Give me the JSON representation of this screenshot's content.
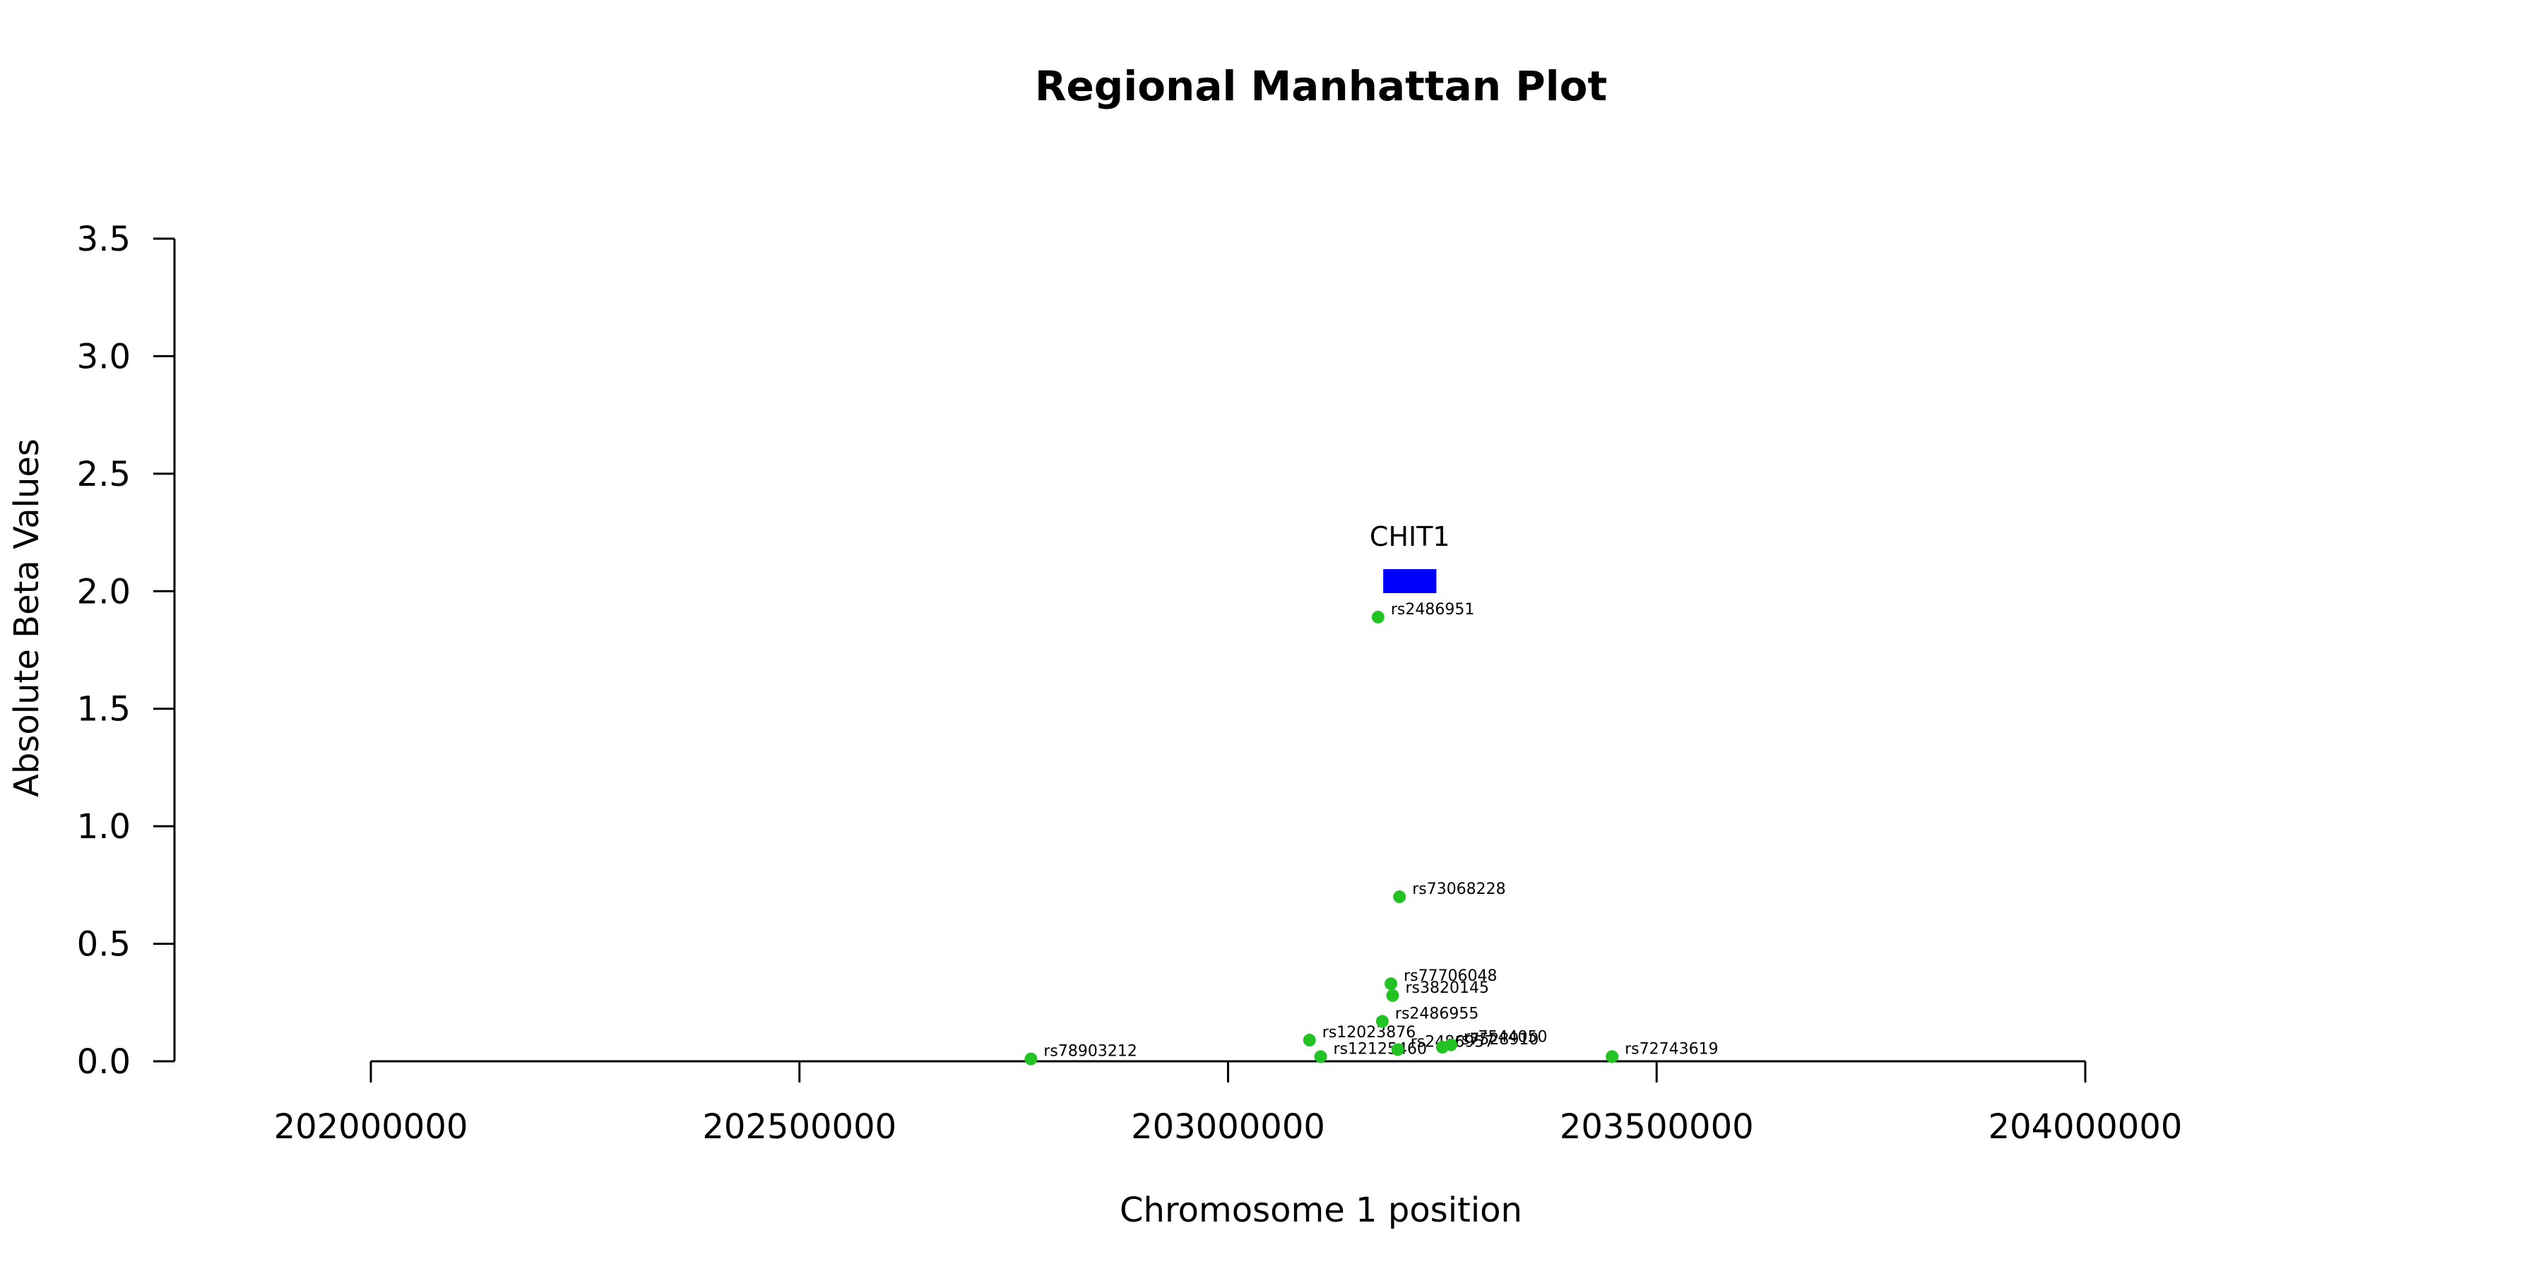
{
  "chart_data": {
    "type": "scatter",
    "title": "Regional Manhattan Plot",
    "xlabel": "Chromosome 1 position",
    "ylabel": "Absolute Beta Values",
    "xlim": [
      202000000,
      204000000
    ],
    "ylim": [
      0,
      3.5
    ],
    "x_ticks": [
      "202000000",
      "202500000",
      "203000000",
      "203500000",
      "204000000"
    ],
    "y_ticks": [
      "0.0",
      "0.5",
      "1.0",
      "1.5",
      "2.0",
      "2.5",
      "3.0",
      "3.5"
    ],
    "point_color": "#22c322",
    "points": [
      {
        "label": "rs78903212",
        "x": 202770000,
        "y": 0.01
      },
      {
        "label": "rs12023876",
        "x": 203095000,
        "y": 0.09
      },
      {
        "label": "rs12125460",
        "x": 203108000,
        "y": 0.02
      },
      {
        "label": "rs2486951",
        "x": 203175000,
        "y": 1.89
      },
      {
        "label": "rs2486955",
        "x": 203180000,
        "y": 0.17
      },
      {
        "label": "rs77706048",
        "x": 203190000,
        "y": 0.33
      },
      {
        "label": "rs3820145",
        "x": 203192000,
        "y": 0.28
      },
      {
        "label": "rs73068228",
        "x": 203200000,
        "y": 0.7
      },
      {
        "label": "rs2486957",
        "x": 203198000,
        "y": 0.05
      },
      {
        "label": "rs7528910",
        "x": 203250000,
        "y": 0.06
      },
      {
        "label": "rs7544050",
        "x": 203260000,
        "y": 0.07
      },
      {
        "label": "rs72743619",
        "x": 203448000,
        "y": 0.02
      }
    ],
    "genes": [
      {
        "name": "CHIT1",
        "start": 203181000,
        "end": 203243000,
        "color": "#0000ff"
      }
    ]
  }
}
